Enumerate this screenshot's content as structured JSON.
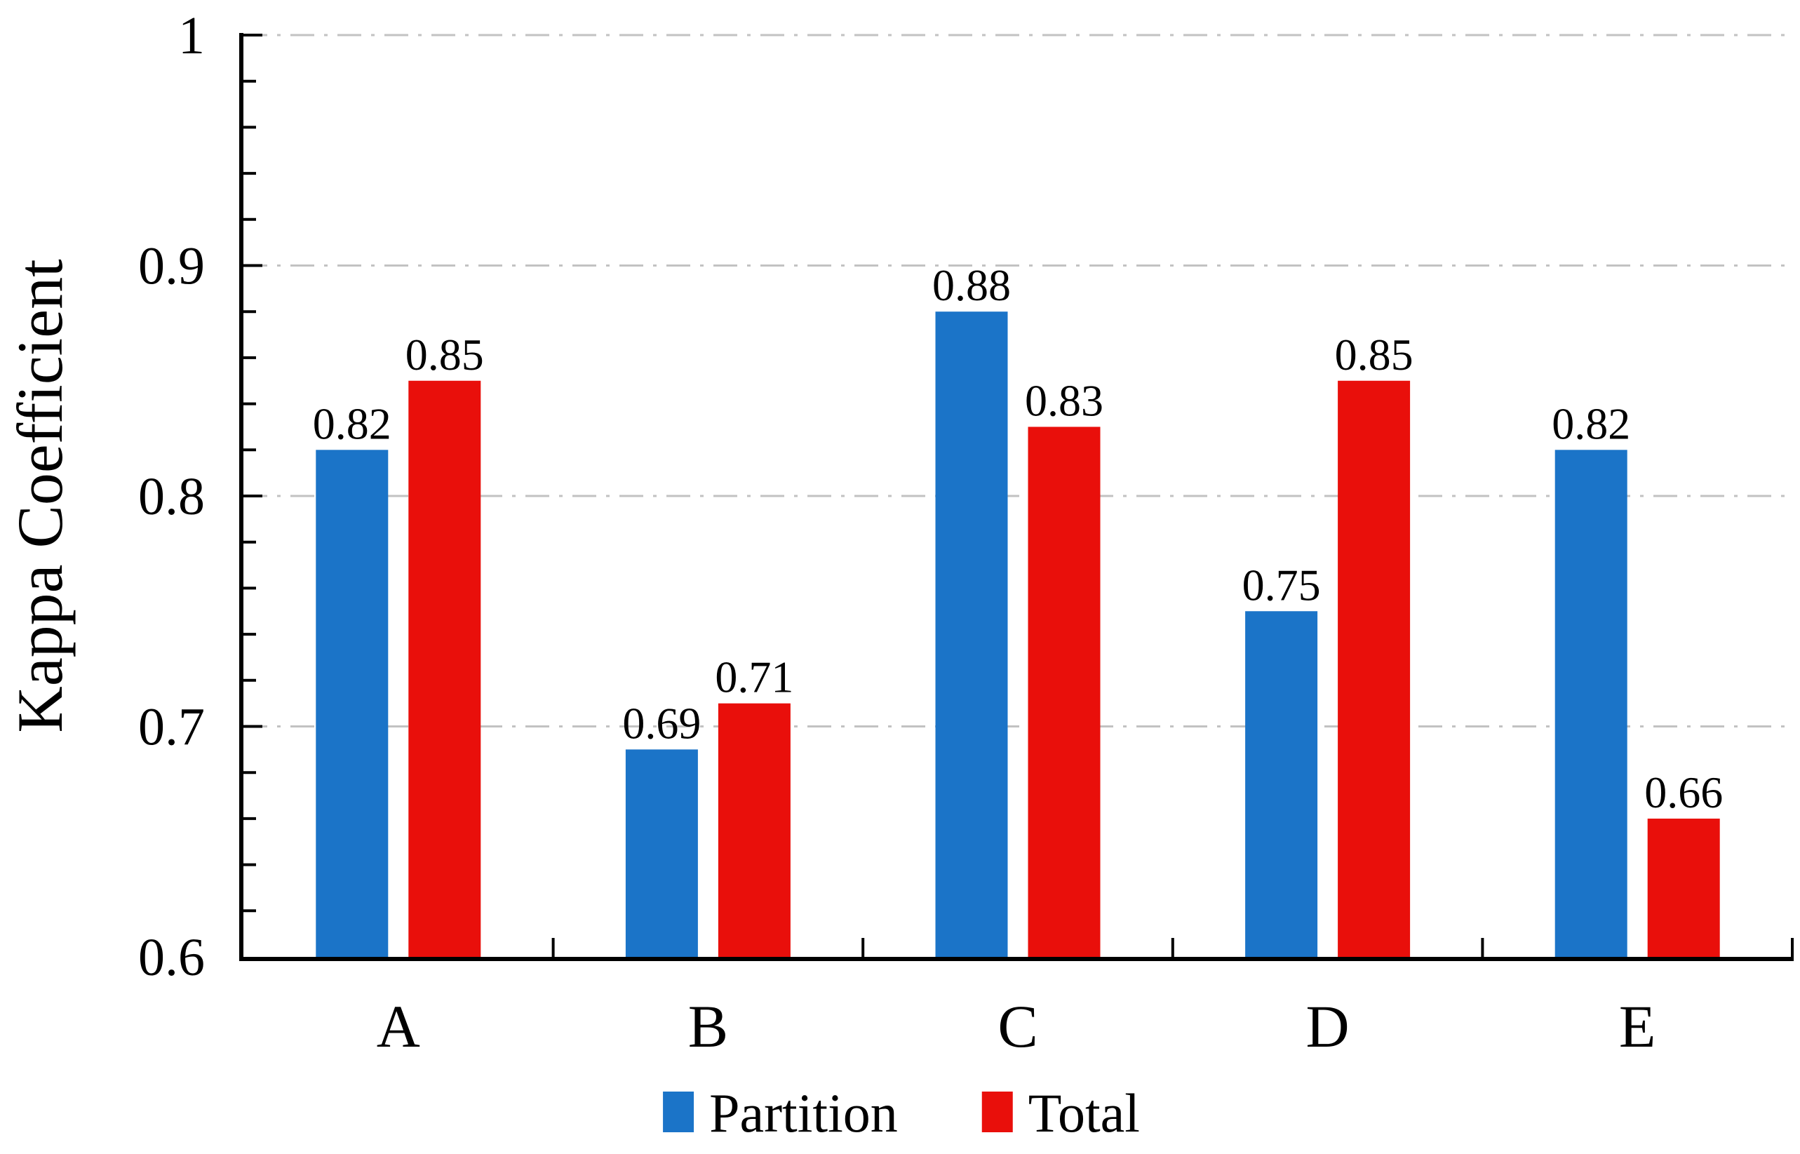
{
  "chart_data": {
    "type": "bar",
    "categories": [
      "A",
      "B",
      "C",
      "D",
      "E"
    ],
    "series": [
      {
        "name": "Partition",
        "color": "#1B74C8",
        "values": [
          0.82,
          0.69,
          0.88,
          0.75,
          0.82
        ]
      },
      {
        "name": "Total",
        "color": "#E90F0B",
        "values": [
          0.85,
          0.71,
          0.83,
          0.85,
          0.66
        ]
      }
    ],
    "value_labels": [
      [
        "0.82",
        "0.69",
        "0.88",
        "0.75",
        "0.82"
      ],
      [
        "0.85",
        "0.71",
        "0.83",
        "0.85",
        "0.66"
      ]
    ],
    "title": "",
    "xlabel": "",
    "ylabel": "Kappa Coefficient",
    "ylim": [
      0.6,
      1.0
    ],
    "yticks": [
      {
        "value": 0.6,
        "label": "0.6"
      },
      {
        "value": 0.7,
        "label": "0.7"
      },
      {
        "value": 0.8,
        "label": "0.8"
      },
      {
        "value": 0.9,
        "label": "0.9"
      },
      {
        "value": 1.0,
        "label": "1"
      }
    ],
    "minor_tick_step": 0.02,
    "grid": {
      "horizontal_major": true,
      "style": "dash-dot",
      "color": "#C2C2C2"
    },
    "legend_position": "bottom",
    "colors": {
      "axis": "#000000",
      "text": "#000000",
      "grid": "#C2C2C2",
      "background": "#FFFFFF",
      "partition": "#1B74C8",
      "total": "#E90F0B"
    }
  }
}
